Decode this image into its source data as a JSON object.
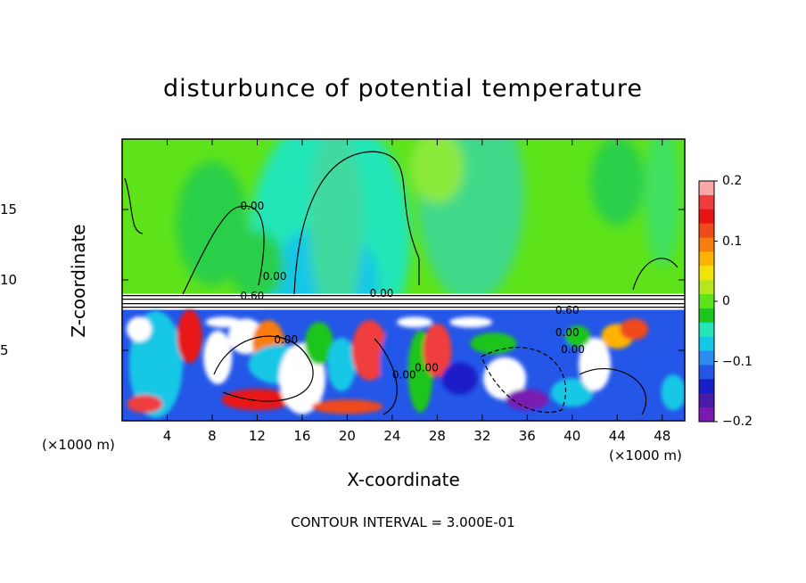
{
  "chart_data": {
    "type": "heatmap",
    "title": "disturbunce of potential temperature",
    "xlabel": "X-coordinate",
    "ylabel": "Z-coordinate",
    "x_unit": "(×1000 m)",
    "xlim": [
      0,
      50
    ],
    "ylim": [
      0,
      20
    ],
    "x_ticks": [
      4,
      8,
      12,
      16,
      20,
      24,
      28,
      32,
      36,
      40,
      44,
      48
    ],
    "y_ticks": [
      5,
      10,
      15
    ],
    "colorbar": {
      "range": [
        -0.2,
        0.2
      ],
      "ticks": [
        0.2,
        0.1,
        0,
        -0.1,
        -0.2
      ],
      "tick_labels": [
        "0.2",
        "0.1",
        "0",
        "−0.1",
        "−0.2"
      ],
      "colors": [
        "#f9a7a7",
        "#f03c3c",
        "#e81414",
        "#f04a1a",
        "#f77d0d",
        "#ffb300",
        "#f2e20a",
        "#b8e61e",
        "#5ee31a",
        "#1fc51f",
        "#24e6b8",
        "#12c8e6",
        "#2a8cf0",
        "#2456e8",
        "#1a1ec8",
        "#4a1aa8",
        "#7a1ab0"
      ]
    },
    "annotation": "CONTOUR INTERVAL = 3.000E-01",
    "contour_labels": [
      "0.00",
      "0.00",
      "0.00",
      "0.00",
      "0.60",
      "0.60",
      "0.00",
      "0.00",
      "0.00",
      "0.00"
    ],
    "field_description_values": {
      "upper_layer_value": 0.0,
      "upper_layer_cyan_core": -0.07,
      "lower_layer_min": -0.2,
      "lower_layer_max": 0.2
    }
  },
  "text": {
    "title": "disturbunce of potential temperature",
    "xlabel": "X-coordinate",
    "ylabel": "Z-coordinate",
    "unit_left": "(×1000 m)",
    "unit_right": "(×1000 m)",
    "contour_interval": "CONTOUR INTERVAL = 3.000E-01"
  }
}
